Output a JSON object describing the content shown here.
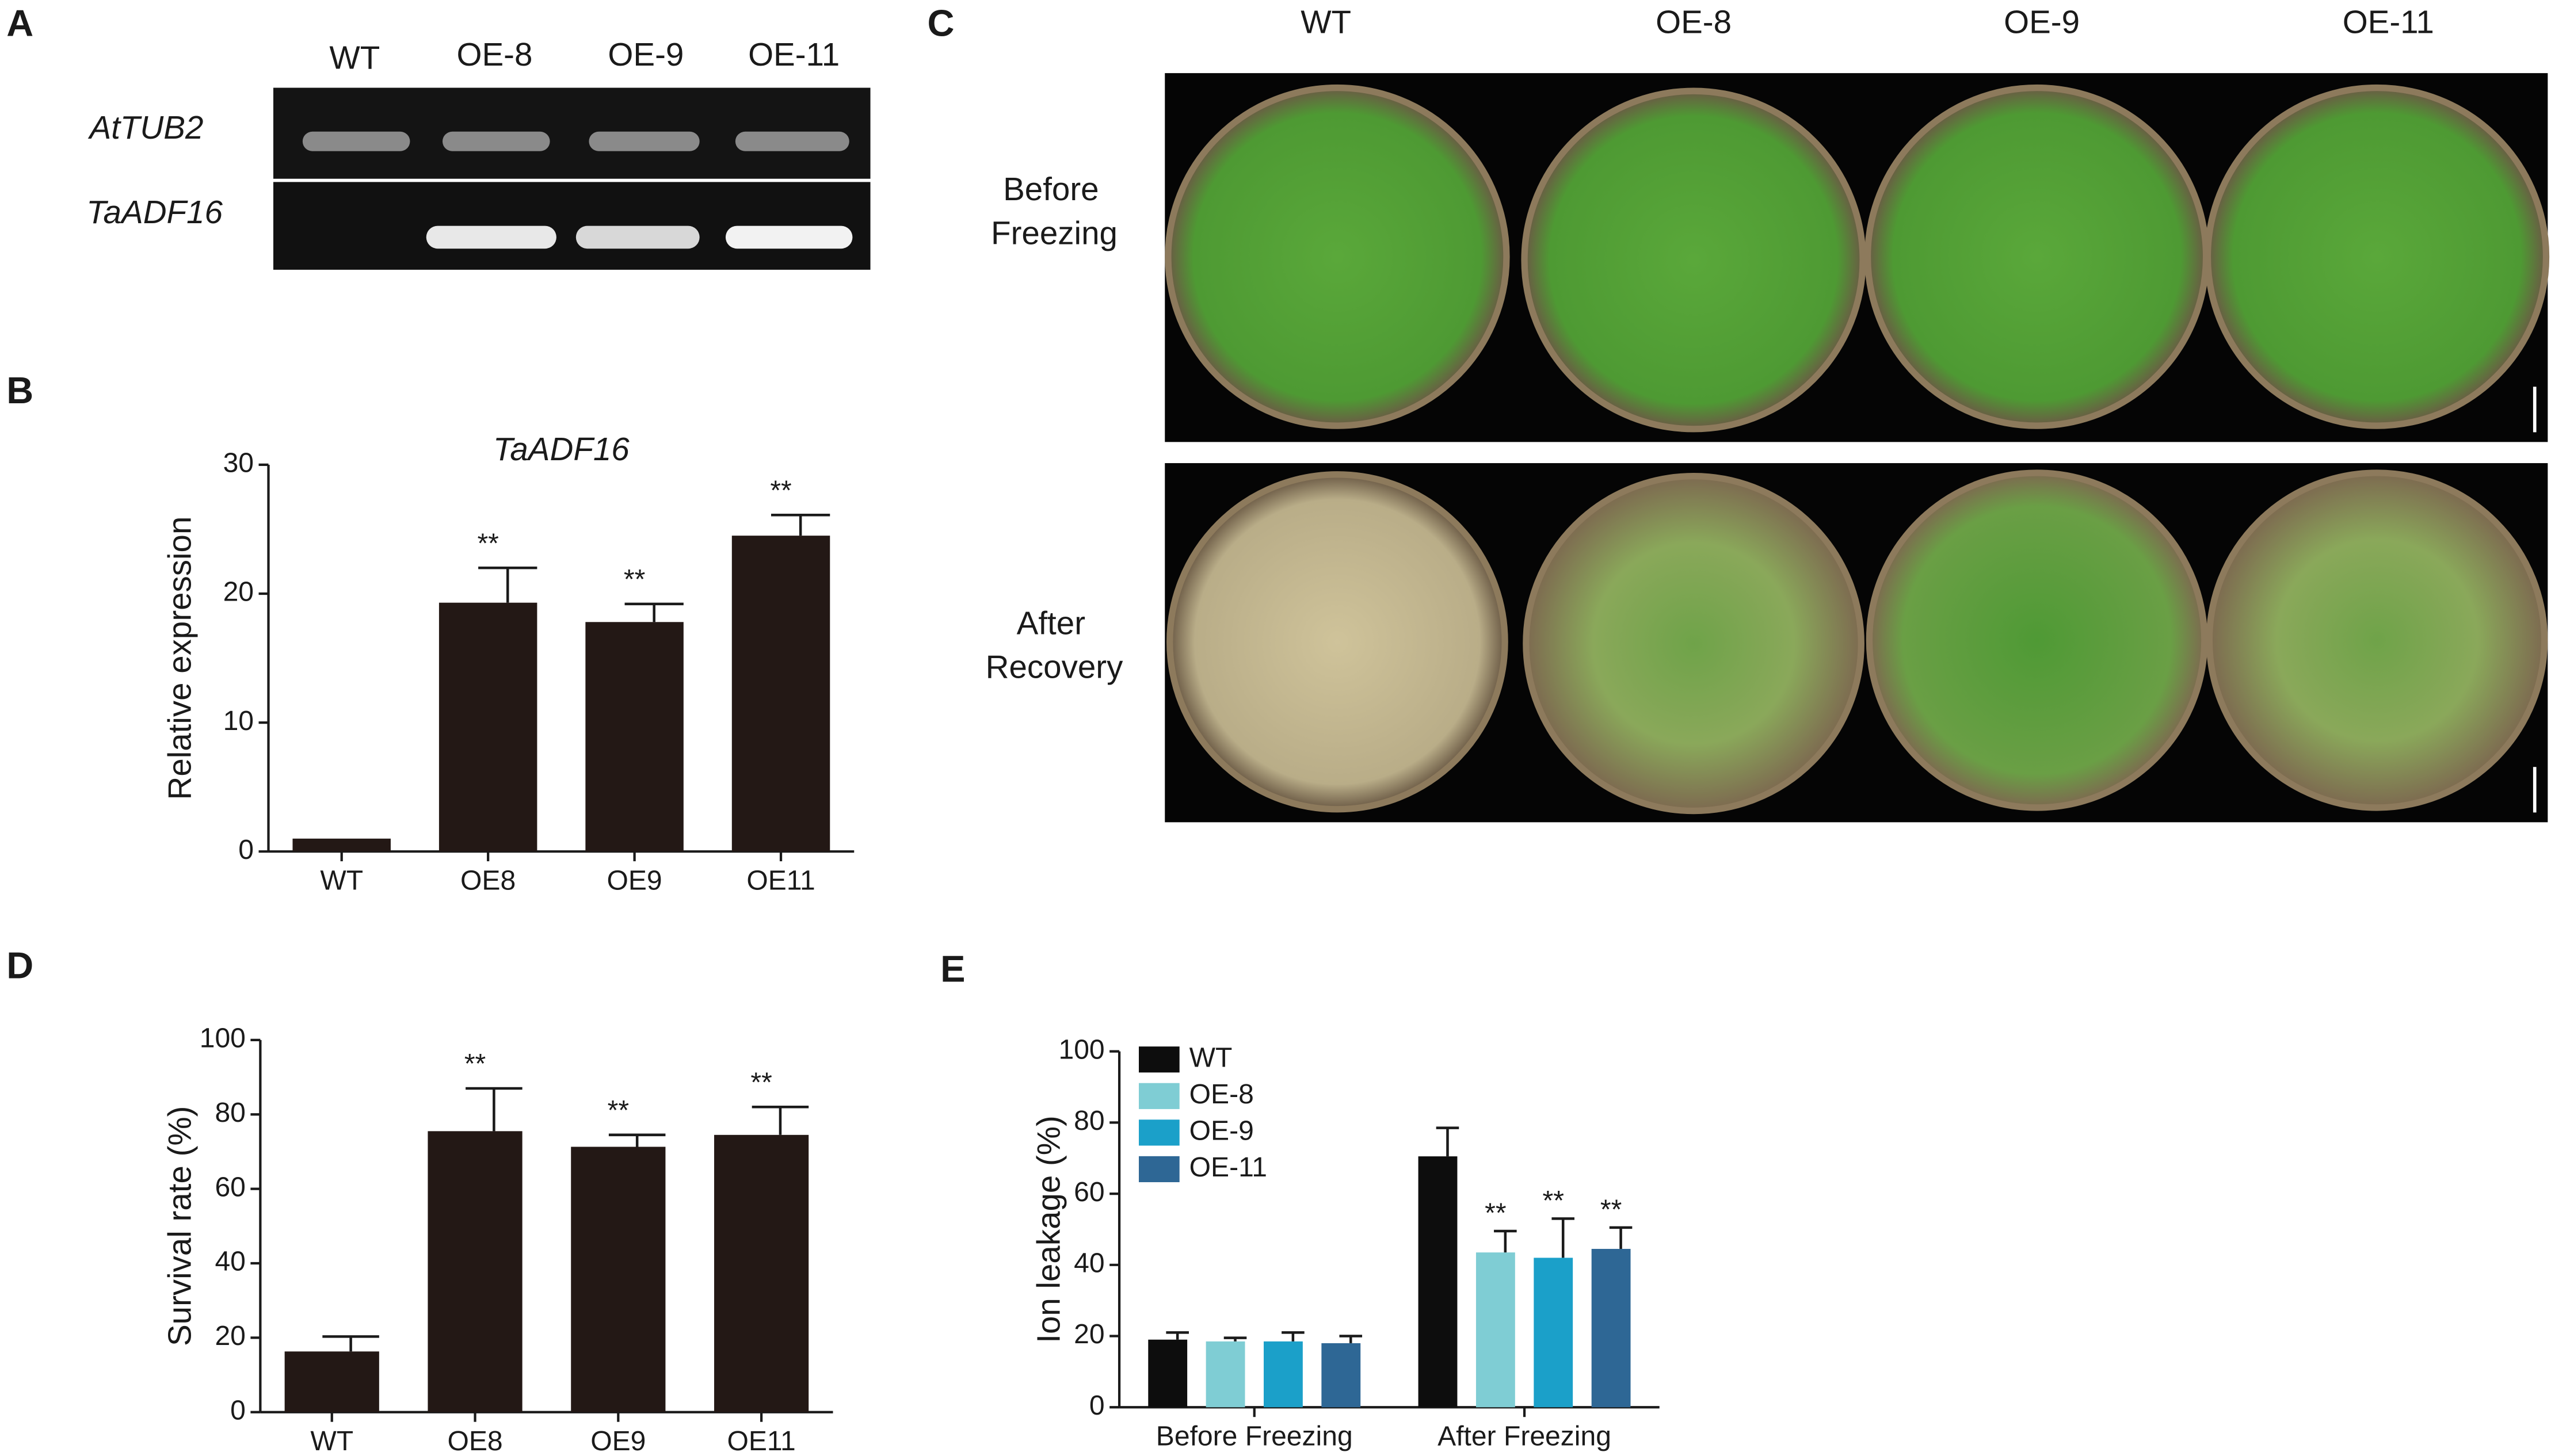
{
  "gel": {
    "panel_label": "A",
    "lanes": [
      "WT",
      "OE-8",
      "OE-9",
      "OE-11"
    ],
    "genes": [
      "AtTUB2",
      "TaADF16"
    ]
  },
  "photos": {
    "panel_label": "C",
    "lines": [
      "WT",
      "OE-8",
      "OE-9",
      "OE-11"
    ],
    "conditions": [
      [
        "Before",
        "Freezing"
      ],
      [
        "After",
        "Recovery"
      ]
    ]
  },
  "chart_data": [
    {
      "type": "bar",
      "panel_label": "B",
      "title": "TaADF16",
      "ylabel": "Relative expression",
      "categories": [
        "WT",
        "OE8",
        "OE9",
        "OE11"
      ],
      "values": [
        1.0,
        19.3,
        17.8,
        24.5
      ],
      "errors": [
        null,
        2.7,
        1.4,
        1.6
      ],
      "annotations": [
        null,
        "**",
        "**",
        "**"
      ],
      "color": "#231815",
      "ylim": [
        0,
        30
      ],
      "yticks": [
        0,
        10,
        20,
        30
      ]
    },
    {
      "type": "bar",
      "panel_label": "D",
      "ylabel": "Survival rate (%)",
      "categories": [
        "WT",
        "OE8",
        "OE9",
        "OE11"
      ],
      "values": [
        16.3,
        75.5,
        71.3,
        74.5
      ],
      "errors": [
        4,
        11.5,
        3.2,
        7.5
      ],
      "annotations": [
        null,
        "**",
        "**",
        "**"
      ],
      "color": "#231815",
      "ylim": [
        0,
        100
      ],
      "yticks": [
        0,
        20,
        40,
        60,
        80,
        100
      ]
    },
    {
      "type": "grouped_bar",
      "panel_label": "E",
      "ylabel": "Ion leakage (%)",
      "categories": [
        "Before Freezing",
        "After Freezing"
      ],
      "legend": "top-left",
      "ylim": [
        0,
        100
      ],
      "yticks": [
        0,
        20,
        40,
        60,
        80,
        100
      ],
      "series": [
        {
          "name": "WT",
          "color": "#0d0d0d",
          "values": [
            19,
            70.5
          ],
          "errors": [
            2,
            8
          ],
          "annotations": [
            null,
            null
          ]
        },
        {
          "name": "OE-8",
          "color": "#7fcdd4",
          "values": [
            18.5,
            43.5
          ],
          "errors": [
            1,
            6
          ],
          "annotations": [
            null,
            "**"
          ]
        },
        {
          "name": "OE-9",
          "color": "#1ba0c9",
          "values": [
            18.5,
            42
          ],
          "errors": [
            2.5,
            11
          ],
          "annotations": [
            null,
            "**"
          ]
        },
        {
          "name": "OE-11",
          "color": "#2e6795",
          "values": [
            18,
            44.5
          ],
          "errors": [
            2,
            6
          ],
          "annotations": [
            null,
            "**"
          ]
        }
      ]
    }
  ]
}
